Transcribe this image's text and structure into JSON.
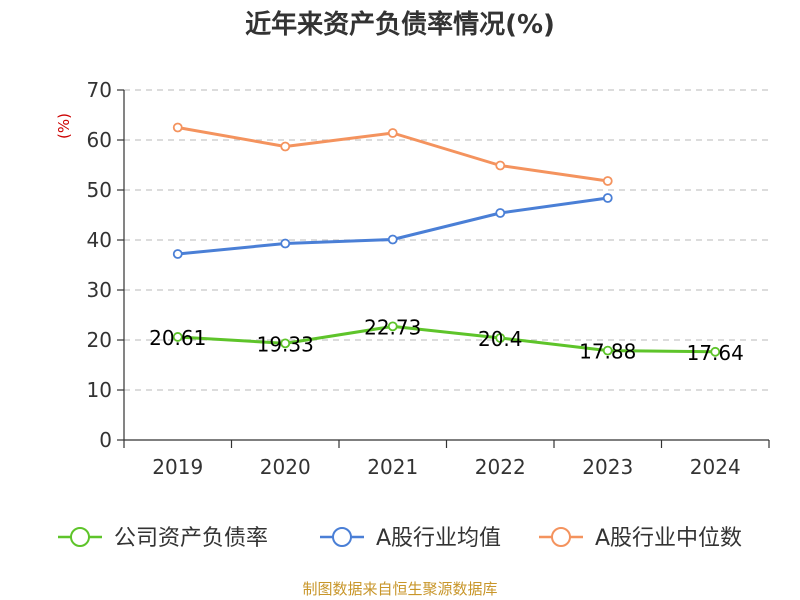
{
  "chart_data": {
    "type": "line",
    "title": "近年来资产负债率情况(%)",
    "ylabel": "(%)",
    "categories": [
      "2019",
      "2020",
      "2021",
      "2022",
      "2023",
      "2024"
    ],
    "ylim": [
      0,
      70
    ],
    "yticks": [
      0,
      10,
      20,
      30,
      40,
      50,
      60,
      70
    ],
    "grid": true,
    "legend_position": "bottom",
    "series": [
      {
        "name": "公司资产负债率",
        "color": "#5ec42a",
        "values": [
          20.61,
          19.33,
          22.73,
          20.4,
          17.88,
          17.64
        ],
        "labels": [
          "20.61",
          "19.33",
          "22.73",
          "20.4",
          "17.88",
          "17.64"
        ]
      },
      {
        "name": "A股行业均值",
        "color": "#4a7fd6",
        "values": [
          37.2,
          39.3,
          40.1,
          45.4,
          48.4,
          null
        ]
      },
      {
        "name": "A股行业中位数",
        "color": "#f4935e",
        "values": [
          62.5,
          58.7,
          61.4,
          54.9,
          51.8,
          null
        ]
      }
    ],
    "source": "制图数据来自恒生聚源数据库"
  }
}
